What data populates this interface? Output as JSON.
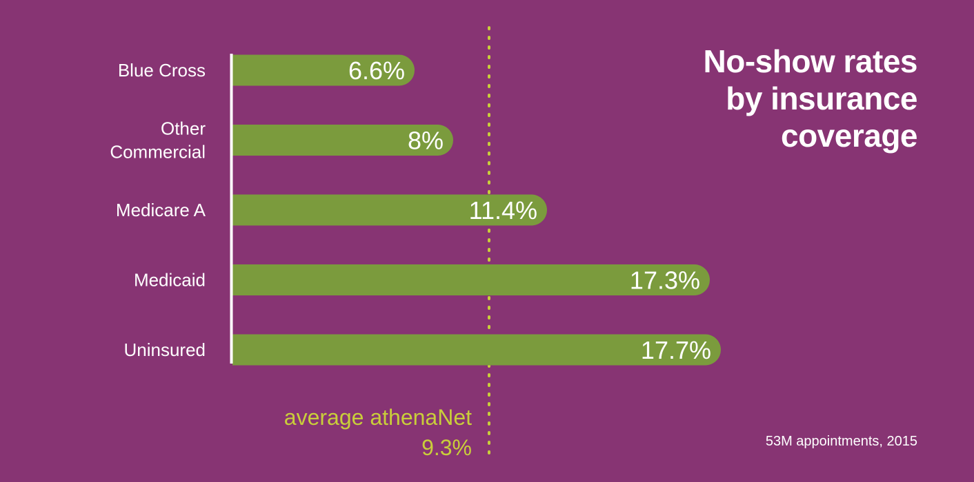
{
  "chart_data": {
    "type": "bar",
    "orientation": "horizontal",
    "title_lines": [
      "No-show rates",
      "by insurance",
      "coverage"
    ],
    "categories": [
      [
        "Blue Cross"
      ],
      [
        "Other",
        "Commercial"
      ],
      [
        "Medicare A"
      ],
      [
        "Medicaid"
      ],
      [
        "Uninsured"
      ]
    ],
    "values": [
      6.6,
      8,
      11.4,
      17.3,
      17.7
    ],
    "value_labels": [
      "6.6%",
      "8%",
      "11.4%",
      "17.3%",
      "17.7%"
    ],
    "xlim": [
      0,
      19
    ],
    "reference_line": {
      "value": 9.3,
      "label_lines": [
        "average athenaNet",
        "9.3%"
      ]
    },
    "footnote": "53M appointments, 2015",
    "grid": false,
    "legend": "none"
  },
  "colors": {
    "background": "#873473",
    "bar": "#7b9b3d",
    "text": "#ffffff",
    "reference": "#c9ce3a"
  }
}
